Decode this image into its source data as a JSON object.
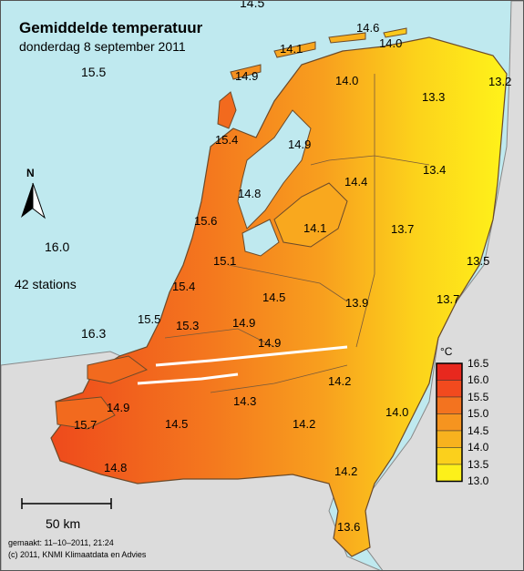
{
  "title": "Gemiddelde temperatuur",
  "subtitle": "donderdag 8 september 2011",
  "north_label": "N",
  "sea_values": [
    "14.5",
    "15.5",
    "16.0",
    "16.3"
  ],
  "stations_label": "42 stations",
  "station_values": [
    "14.6",
    "14.0",
    "14.1",
    "14.9",
    "13.2",
    "14.0",
    "13.3",
    "15.4",
    "14.9",
    "13.4",
    "14.4",
    "14.8",
    "15.6",
    "14.1",
    "13.7",
    "15.1",
    "13.5",
    "15.4",
    "14.5",
    "13.7",
    "13.9",
    "15.5",
    "15.3",
    "14.9",
    "14.9",
    "14.2",
    "14.0",
    "14.9",
    "14.3",
    "15.7",
    "14.5",
    "14.2",
    "14.8",
    "14.2",
    "13.6"
  ],
  "legend": {
    "unit": "°C",
    "ticks": [
      "16.5",
      "16.0",
      "15.5",
      "15.0",
      "14.5",
      "14.0",
      "13.5",
      "13.0"
    ],
    "colors": [
      "#e8281e",
      "#f24a1e",
      "#f3731f",
      "#f6941f",
      "#f8b21e",
      "#fbd01c",
      "#fdf01a"
    ]
  },
  "scale_bar_label": "50 km",
  "footer": {
    "made": "gemaakt: 11–10–2011, 21:24",
    "copyright": "(c) 2011, KNMI Klimaatdata en Advies"
  }
}
